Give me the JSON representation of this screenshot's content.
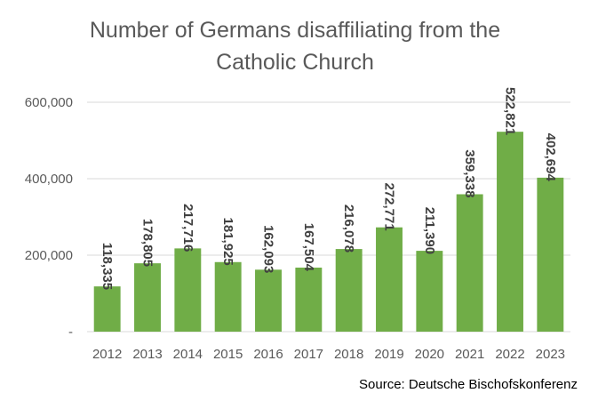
{
  "chart_data": {
    "type": "bar",
    "title_lines": [
      "Number of Germans disaffiliating from the",
      "Catholic Church"
    ],
    "categories": [
      "2012",
      "2013",
      "2014",
      "2015",
      "2016",
      "2017",
      "2018",
      "2019",
      "2020",
      "2021",
      "2022",
      "2023"
    ],
    "values": [
      118335,
      178805,
      217716,
      181925,
      162093,
      167504,
      216078,
      272771,
      211390,
      359338,
      522821,
      402694
    ],
    "data_labels": [
      "118,335",
      "178,805",
      "217,716",
      "181,925",
      "162,093",
      "167,504",
      "216,078",
      "272,771",
      "211,390",
      "359,338",
      "522,821",
      "402,694"
    ],
    "y_ticks": [
      0,
      200000,
      400000,
      600000
    ],
    "y_tick_labels": [
      "-",
      "200,000",
      "400,000",
      "600,000"
    ],
    "ylim": [
      0,
      600000
    ],
    "grid": true,
    "legend": "none",
    "bar_color": "#70ad47",
    "grid_color": "#d9d9d9",
    "source": "Source: Deutsche Bischofskonferenz"
  }
}
